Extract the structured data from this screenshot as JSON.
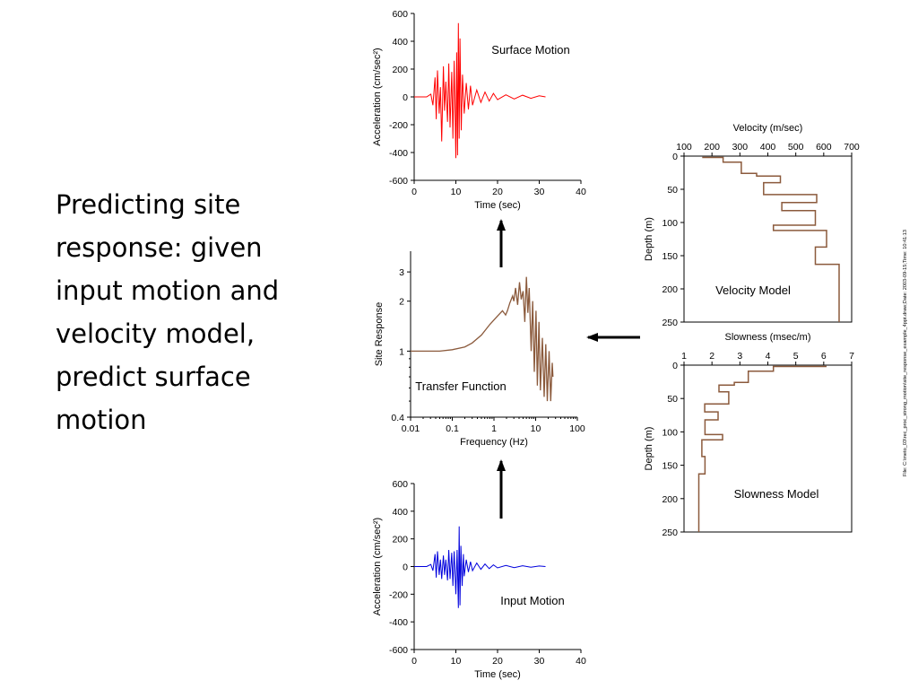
{
  "slide": {
    "text_lines": [
      "Predicting site",
      "response: given",
      "input motion and",
      "velocity model,",
      "predict surface",
      "motion"
    ]
  },
  "file_stamp": "File: C:\\meto_03\\rec_proc_strong_motion\\site_response_example_4ppt.draw;Date: 2003-09-15;Time: 10:41:13",
  "colors": {
    "surface": "#ff0000",
    "input": "#0000dd",
    "model": "#8b5a3c",
    "axis": "#000000",
    "arrow": "#000000"
  },
  "chart_data": [
    {
      "id": "surface_motion",
      "type": "line",
      "title": "Surface Motion",
      "xlabel": "Time  (sec)",
      "ylabel": "Acceleration  (cm/sec²)",
      "xlim": [
        0,
        40
      ],
      "ylim": [
        -600,
        600
      ],
      "xticks": [
        0,
        10,
        20,
        30,
        40
      ],
      "yticks": [
        600,
        400,
        200,
        0,
        -200,
        -400,
        -600
      ],
      "series": [
        {
          "x": [
            0,
            3,
            4,
            4.5,
            5,
            5.3,
            5.6,
            6,
            6.3,
            6.6,
            7,
            7.3,
            7.6,
            8,
            8.3,
            8.6,
            9,
            9.3,
            9.6,
            10,
            10.2,
            10.4,
            10.6,
            10.8,
            11,
            11.3,
            11.6,
            12,
            12.5,
            13,
            13.5,
            14,
            15,
            16,
            17,
            18,
            19,
            20,
            22,
            24,
            26,
            28,
            30,
            31.5
          ],
          "y": [
            0,
            0,
            20,
            -60,
            140,
            -160,
            190,
            -120,
            70,
            -320,
            220,
            -100,
            110,
            -180,
            240,
            -220,
            180,
            -300,
            260,
            -440,
            320,
            -420,
            530,
            -300,
            420,
            -240,
            160,
            -120,
            100,
            -90,
            80,
            -60,
            50,
            -40,
            35,
            -30,
            25,
            -20,
            15,
            -15,
            12,
            -10,
            8,
            0
          ]
        }
      ]
    },
    {
      "id": "transfer_function",
      "type": "line",
      "title": "Transfer Function",
      "xlabel": "Frequency  (Hz)",
      "ylabel": "Site Response",
      "xscale": "log",
      "yscale": "log",
      "xlim": [
        0.01,
        100
      ],
      "ylim": [
        0.4,
        4
      ],
      "xticks": [
        0.01,
        0.1,
        1,
        10,
        100
      ],
      "yticks": [
        3,
        2,
        1,
        0.4
      ],
      "series": [
        {
          "x": [
            0.01,
            0.05,
            0.1,
            0.2,
            0.3,
            0.5,
            0.8,
            1.2,
            1.6,
            1.9,
            2.1,
            2.4,
            2.8,
            3.0,
            3.3,
            3.7,
            4.1,
            4.5,
            5.0,
            5.5,
            6.0,
            6.5,
            7.0,
            7.8,
            8.5,
            9.3,
            10.2,
            11.0,
            12.0,
            13.0,
            14.5,
            16.0,
            17.5,
            19.0,
            21.0,
            23.0,
            25.0,
            26.0
          ],
          "y": [
            1.0,
            1.0,
            1.02,
            1.06,
            1.12,
            1.25,
            1.45,
            1.62,
            1.75,
            1.65,
            1.75,
            1.95,
            2.15,
            2.0,
            2.4,
            1.9,
            2.6,
            2.05,
            2.3,
            1.5,
            2.8,
            1.7,
            2.4,
            1.0,
            2.0,
            0.75,
            1.75,
            0.62,
            1.5,
            0.58,
            1.2,
            0.53,
            1.1,
            0.5,
            1.0,
            0.5,
            0.85,
            0.7
          ]
        }
      ]
    },
    {
      "id": "input_motion",
      "type": "line",
      "title": "Input Motion",
      "xlabel": "Time  (sec)",
      "ylabel": "Acceleration  (cm/sec²)",
      "xlim": [
        0,
        40
      ],
      "ylim": [
        -600,
        600
      ],
      "xticks": [
        0,
        10,
        20,
        30,
        40
      ],
      "yticks": [
        600,
        400,
        200,
        0,
        -200,
        -400,
        -600
      ],
      "series": [
        {
          "x": [
            0,
            3,
            4,
            4.5,
            5,
            5.3,
            5.6,
            6,
            6.3,
            6.6,
            7,
            7.3,
            7.6,
            8,
            8.3,
            8.6,
            9,
            9.3,
            9.6,
            10,
            10.3,
            10.6,
            10.8,
            11,
            11.2,
            11.5,
            11.8,
            12,
            12.5,
            13,
            13.5,
            14,
            15,
            16,
            17,
            18,
            19,
            20,
            22,
            24,
            26,
            28,
            30,
            31.5
          ],
          "y": [
            0,
            0,
            15,
            -30,
            90,
            -80,
            110,
            -60,
            50,
            -90,
            80,
            -60,
            50,
            -100,
            120,
            -90,
            100,
            -140,
            110,
            -200,
            120,
            -300,
            290,
            -280,
            150,
            -140,
            90,
            -70,
            50,
            -40,
            35,
            -30,
            25,
            -20,
            18,
            -15,
            12,
            -10,
            8,
            -8,
            6,
            -5,
            4,
            0
          ]
        }
      ]
    },
    {
      "id": "velocity_model",
      "type": "line",
      "chart_kind": "step_profile",
      "title": "Velocity  (m/sec)",
      "annotation": "Velocity Model",
      "ylabel": "Depth  (m)",
      "xlim": [
        100,
        700
      ],
      "ylim": [
        0,
        250
      ],
      "y_inverted": true,
      "x_axis_position": "top",
      "xticks": [
        100,
        200,
        300,
        400,
        500,
        600,
        700
      ],
      "yticks": [
        0,
        50,
        100,
        150,
        200,
        250
      ],
      "series": [
        {
          "depth": [
            2,
            2,
            9,
            9,
            26,
            26,
            30,
            30,
            40,
            40,
            58,
            58,
            70,
            70,
            82,
            82,
            104,
            104,
            112,
            112,
            137,
            137,
            163,
            163,
            250
          ],
          "velocity": [
            165,
            240,
            240,
            305,
            305,
            360,
            360,
            445,
            445,
            385,
            385,
            575,
            575,
            450,
            450,
            570,
            570,
            420,
            420,
            610,
            610,
            570,
            570,
            655,
            655
          ]
        }
      ]
    },
    {
      "id": "slowness_model",
      "type": "line",
      "chart_kind": "step_profile",
      "title": "Slowness  (msec/m)",
      "annotation": "Slowness Model",
      "ylabel": "Depth  (m)",
      "xlim": [
        1,
        7
      ],
      "ylim": [
        0,
        250
      ],
      "y_inverted": true,
      "x_axis_position": "top",
      "xticks": [
        1,
        2,
        3,
        4,
        5,
        6,
        7
      ],
      "yticks": [
        0,
        50,
        100,
        150,
        200,
        250
      ],
      "series": [
        {
          "depth": [
            2,
            2,
            9,
            9,
            26,
            26,
            30,
            30,
            40,
            40,
            58,
            58,
            70,
            70,
            82,
            82,
            104,
            104,
            112,
            112,
            137,
            137,
            163,
            163,
            250
          ],
          "slowness": [
            6.1,
            4.2,
            4.2,
            3.3,
            3.3,
            2.8,
            2.8,
            2.25,
            2.25,
            2.6,
            2.6,
            1.74,
            1.74,
            2.22,
            2.22,
            1.75,
            1.75,
            2.38,
            2.38,
            1.64,
            1.64,
            1.75,
            1.75,
            1.53,
            1.53
          ]
        }
      ]
    }
  ]
}
